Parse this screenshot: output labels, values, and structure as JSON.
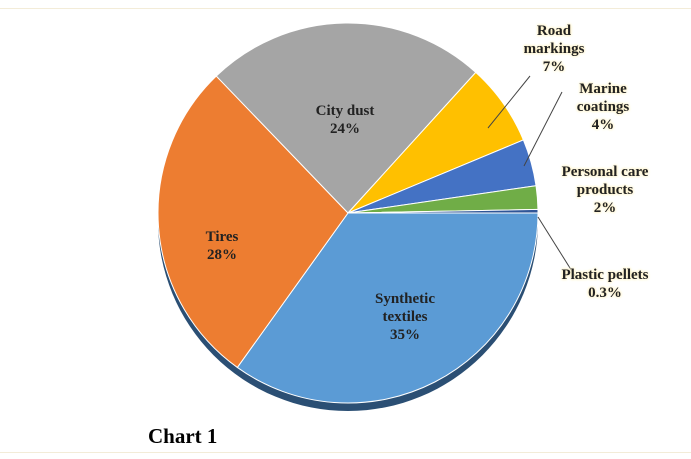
{
  "chart_data": {
    "type": "pie",
    "caption": "Chart 1",
    "categories": [
      "Synthetic textiles",
      "Tires",
      "City dust",
      "Road markings",
      "Marine coatings",
      "Personal care products",
      "Plastic pellets"
    ],
    "values": [
      35,
      28,
      24,
      7,
      4,
      2,
      0.3
    ],
    "value_labels": [
      "35%",
      "28%",
      "24%",
      "7%",
      "4%",
      "2%",
      "0.3%"
    ],
    "colors": [
      "#5b9bd5",
      "#ed7d31",
      "#a5a5a5",
      "#ffc000",
      "#4472c4",
      "#70ad47",
      "#2f5597"
    ]
  }
}
